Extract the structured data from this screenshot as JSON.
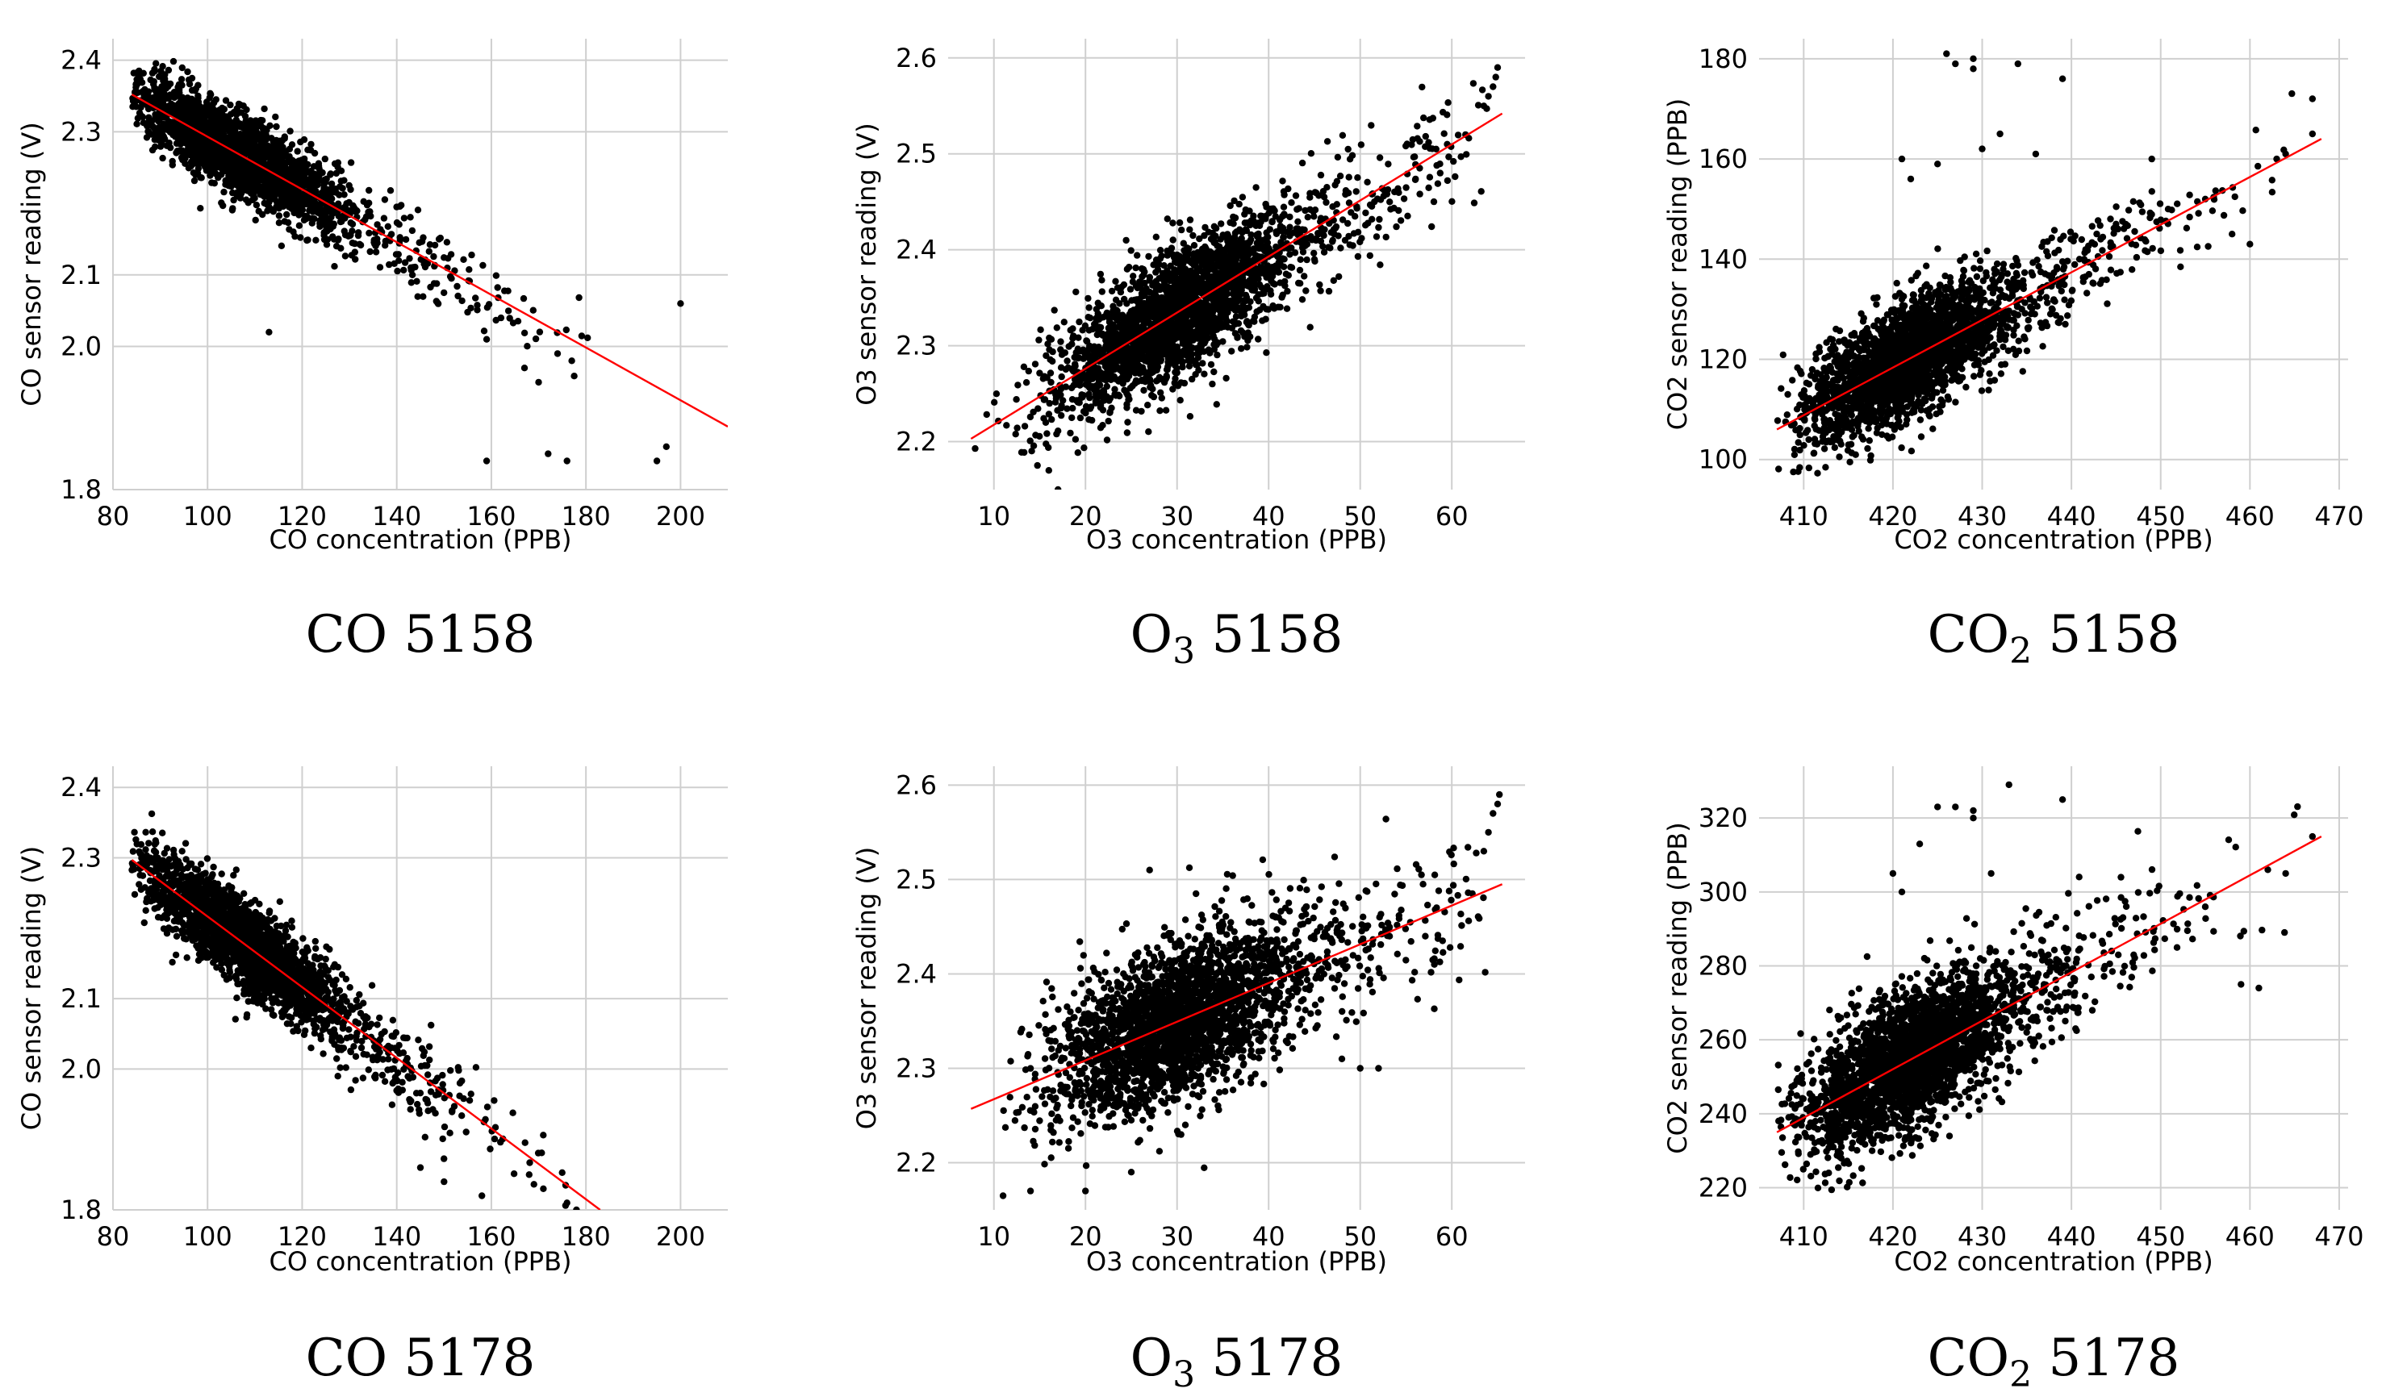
{
  "chart_data": [
    {
      "id": "co-5158",
      "type": "scatter",
      "caption": {
        "main": "CO",
        "sub": "",
        "suffix": " 5158"
      },
      "xlabel": "CO concentration (PPB)",
      "ylabel": "CO sensor reading (V)",
      "xlim": [
        80,
        210
      ],
      "ylim": [
        1.8,
        2.43
      ],
      "xticks": [
        80,
        100,
        120,
        140,
        160,
        180,
        200
      ],
      "yticks": [
        1.8,
        2.0,
        2.1,
        2.3,
        2.4
      ],
      "ytick_labels": [
        "1.8",
        "2.0",
        "2.1",
        "2.3",
        "2.4"
      ],
      "fit_line": {
        "x": [
          84,
          210
        ],
        "y": [
          2.352,
          1.888
        ],
        "color": "#ff0000"
      },
      "point_color": "#000000",
      "scatter_spec": {
        "n": 2200,
        "x_center": 105,
        "x_spread": 16,
        "x_min": 84,
        "x_max": 182,
        "resid_sd": 0.028,
        "seed": 11
      },
      "outliers": [
        [
          113,
          2.02
        ],
        [
          200,
          2.06
        ],
        [
          195,
          1.84
        ],
        [
          197,
          1.86
        ],
        [
          159,
          1.84
        ],
        [
          172,
          1.85
        ],
        [
          176,
          1.84
        ],
        [
          167,
          1.97
        ],
        [
          170,
          1.95
        ],
        [
          174,
          1.99
        ],
        [
          159,
          2.01
        ],
        [
          177,
          1.98
        ]
      ]
    },
    {
      "id": "o3-5158",
      "type": "scatter",
      "caption": {
        "main": "O",
        "sub": "3",
        "suffix": " 5158"
      },
      "xlabel": "O3 concentration (PPB)",
      "ylabel": "O3 sensor reading (V)",
      "xlim": [
        5,
        68
      ],
      "ylim": [
        2.15,
        2.62
      ],
      "xticks": [
        10,
        20,
        30,
        40,
        50,
        60
      ],
      "yticks": [
        2.2,
        2.3,
        2.4,
        2.5,
        2.6
      ],
      "ytick_labels": [
        "2.2",
        "2.3",
        "2.4",
        "2.5",
        "2.6"
      ],
      "fit_line": {
        "x": [
          7.5,
          65.5
        ],
        "y": [
          2.203,
          2.542
        ],
        "color": "#ff0000"
      },
      "point_color": "#000000",
      "scatter_spec": {
        "n": 2600,
        "x_center": 29,
        "x_spread": 9,
        "x_min": 7.5,
        "x_max": 64,
        "resid_sd": 0.032,
        "seed": 22
      },
      "outliers": [
        [
          63.5,
          2.55
        ],
        [
          64,
          2.56
        ],
        [
          64.5,
          2.57
        ],
        [
          64.8,
          2.58
        ],
        [
          65,
          2.59
        ],
        [
          61.5,
          2.52
        ],
        [
          59.5,
          2.51
        ],
        [
          45,
          2.39
        ],
        [
          47,
          2.41
        ],
        [
          16,
          2.17
        ],
        [
          17,
          2.15
        ]
      ]
    },
    {
      "id": "co2-5158",
      "type": "scatter",
      "caption": {
        "main": "CO",
        "sub": "2",
        "suffix": " 5158"
      },
      "xlabel": "CO2 concentration (PPB)",
      "ylabel": "CO2 sensor reading (PPB)",
      "xlim": [
        405,
        471
      ],
      "ylim": [
        94,
        184
      ],
      "xticks": [
        410,
        420,
        430,
        440,
        450,
        460,
        470
      ],
      "yticks": [
        100,
        120,
        140,
        160,
        180
      ],
      "ytick_labels": [
        "100",
        "120",
        "140",
        "160",
        "180"
      ],
      "fit_line": {
        "x": [
          407,
          468
        ],
        "y": [
          106,
          164
        ],
        "color": "#ff0000"
      },
      "point_color": "#000000",
      "scatter_spec": {
        "n": 2600,
        "x_center": 421,
        "x_spread": 8,
        "x_min": 407,
        "x_max": 467,
        "resid_sd": 5.5,
        "seed": 33
      },
      "outliers": [
        [
          426,
          181
        ],
        [
          427,
          179
        ],
        [
          429,
          178
        ],
        [
          429,
          180
        ],
        [
          434,
          179
        ],
        [
          436,
          161
        ],
        [
          439,
          176
        ],
        [
          432,
          165
        ],
        [
          425,
          159
        ],
        [
          430,
          162
        ],
        [
          421,
          160
        ],
        [
          422,
          156
        ],
        [
          463,
          160
        ],
        [
          464,
          161
        ],
        [
          467,
          165
        ],
        [
          467,
          172
        ],
        [
          458,
          145
        ],
        [
          460,
          143
        ],
        [
          455,
          152
        ],
        [
          449,
          160
        ]
      ]
    },
    {
      "id": "co-5178",
      "type": "scatter",
      "caption": {
        "main": "CO",
        "sub": "",
        "suffix": " 5178"
      },
      "xlabel": "CO concentration (PPB)",
      "ylabel": "CO sensor reading (V)",
      "xlim": [
        80,
        210
      ],
      "ylim": [
        1.8,
        2.43
      ],
      "xticks": [
        80,
        100,
        120,
        140,
        160,
        180,
        200
      ],
      "yticks": [
        1.8,
        2.0,
        2.1,
        2.3,
        2.4
      ],
      "ytick_labels": [
        "1.8",
        "2.0",
        "2.1",
        "2.3",
        "2.4"
      ],
      "fit_line": {
        "x": [
          84,
          183
        ],
        "y": [
          2.297,
          1.8
        ],
        "color": "#ff0000"
      },
      "point_color": "#000000",
      "scatter_spec": {
        "n": 2300,
        "x_center": 106,
        "x_spread": 15,
        "x_min": 84,
        "x_max": 180,
        "resid_sd": 0.03,
        "seed": 44
      },
      "outliers": [
        [
          176,
          1.81
        ],
        [
          178,
          1.8
        ],
        [
          171,
          1.83
        ],
        [
          168,
          1.85
        ],
        [
          158,
          1.82
        ],
        [
          150,
          1.84
        ],
        [
          145,
          1.86
        ]
      ]
    },
    {
      "id": "o3-5178",
      "type": "scatter",
      "caption": {
        "main": "O",
        "sub": "3",
        "suffix": " 5178"
      },
      "xlabel": "O3 concentration (PPB)",
      "ylabel": "O3 sensor reading (V)",
      "xlim": [
        5,
        68
      ],
      "ylim": [
        2.15,
        2.62
      ],
      "xticks": [
        10,
        20,
        30,
        40,
        50,
        60
      ],
      "yticks": [
        2.2,
        2.3,
        2.4,
        2.5,
        2.6
      ],
      "ytick_labels": [
        "2.2",
        "2.3",
        "2.4",
        "2.5",
        "2.6"
      ],
      "fit_line": {
        "x": [
          7.5,
          65.5
        ],
        "y": [
          2.257,
          2.495
        ],
        "color": "#ff0000"
      },
      "point_color": "#000000",
      "scatter_spec": {
        "n": 2600,
        "x_center": 29,
        "x_spread": 9,
        "x_min": 7.5,
        "x_max": 64,
        "resid_sd": 0.04,
        "seed": 55
      },
      "outliers": [
        [
          64,
          2.55
        ],
        [
          64.5,
          2.57
        ],
        [
          65,
          2.58
        ],
        [
          65.2,
          2.59
        ],
        [
          63.5,
          2.53
        ],
        [
          52,
          2.3
        ],
        [
          50,
          2.3
        ],
        [
          48,
          2.31
        ],
        [
          27,
          2.51
        ],
        [
          14,
          2.17
        ],
        [
          20,
          2.17
        ],
        [
          25,
          2.19
        ]
      ]
    },
    {
      "id": "co2-5178",
      "type": "scatter",
      "caption": {
        "main": "CO",
        "sub": "2",
        "suffix": " 5178"
      },
      "xlabel": "CO2 concentration (PPB)",
      "ylabel": "CO2 sensor reading (PPB)",
      "xlim": [
        405,
        471
      ],
      "ylim": [
        214,
        334
      ],
      "xticks": [
        410,
        420,
        430,
        440,
        450,
        460,
        470
      ],
      "yticks": [
        220,
        240,
        260,
        280,
        300,
        320
      ],
      "ytick_labels": [
        "220",
        "240",
        "260",
        "280",
        "300",
        "320"
      ],
      "fit_line": {
        "x": [
          407,
          468
        ],
        "y": [
          235,
          315
        ],
        "color": "#ff0000"
      },
      "point_color": "#000000",
      "scatter_spec": {
        "n": 2700,
        "x_center": 421,
        "x_spread": 8,
        "x_min": 407,
        "x_max": 467,
        "resid_sd": 9,
        "seed": 66
      },
      "outliers": [
        [
          425,
          323
        ],
        [
          427,
          323
        ],
        [
          429,
          322
        ],
        [
          429,
          320
        ],
        [
          433,
          329
        ],
        [
          439,
          325
        ],
        [
          420,
          305
        ],
        [
          421,
          300
        ],
        [
          423,
          313
        ],
        [
          431,
          305
        ],
        [
          467,
          315
        ],
        [
          464,
          305
        ],
        [
          462,
          306
        ],
        [
          459,
          275
        ],
        [
          461,
          274
        ],
        [
          455,
          296
        ]
      ]
    }
  ]
}
